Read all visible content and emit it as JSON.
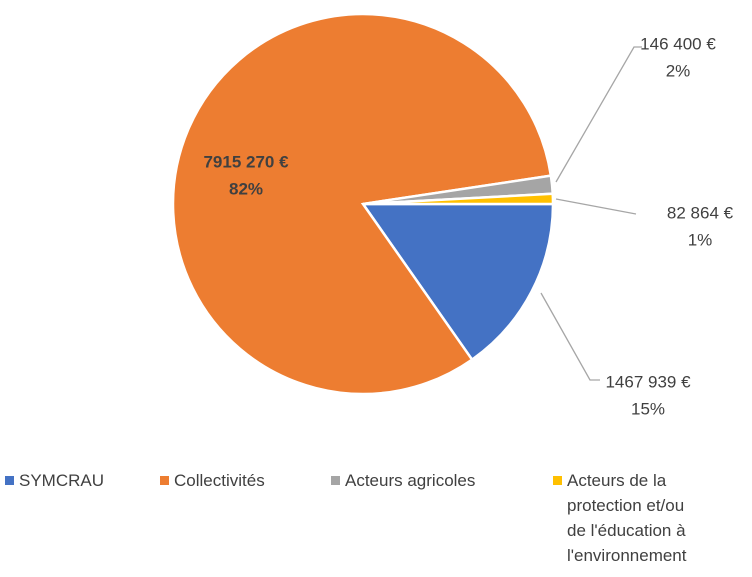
{
  "chart_data": {
    "type": "pie",
    "categories": [
      "SYMCRAU",
      "Collectivités",
      "Acteurs agricoles",
      "Acteurs de la protection et/ou de l'éducation à l'environnement"
    ],
    "values": [
      1467939,
      7915270,
      146400,
      82864
    ],
    "value_labels": [
      "1467 939 €",
      "7915 270 €",
      "146 400 €",
      "82 864 €"
    ],
    "percent_labels": [
      "15%",
      "82%",
      "2%",
      "1%"
    ],
    "colors": [
      "#4472c4",
      "#ed7d31",
      "#a5a5a5",
      "#ffc000"
    ],
    "legend": "bottom"
  }
}
